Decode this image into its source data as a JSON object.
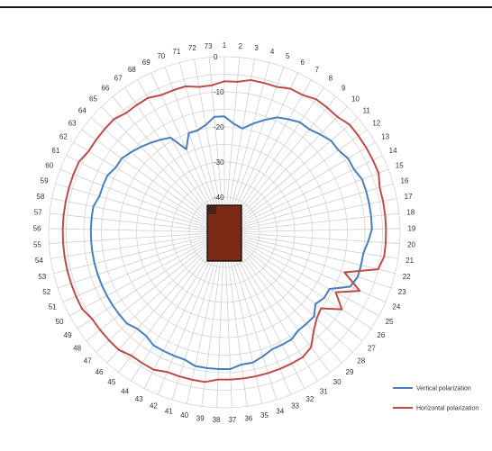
{
  "chart_data": {
    "type": "radar",
    "title": "",
    "angle_labels": [
      "1",
      "2",
      "3",
      "4",
      "5",
      "6",
      "7",
      "8",
      "9",
      "10",
      "11",
      "12",
      "13",
      "14",
      "15",
      "16",
      "17",
      "18",
      "19",
      "20",
      "21",
      "22",
      "23",
      "24",
      "25",
      "26",
      "27",
      "28",
      "29",
      "30",
      "31",
      "32",
      "33",
      "34",
      "35",
      "36",
      "37",
      "38",
      "39",
      "40",
      "41",
      "42",
      "43",
      "44",
      "45",
      "46",
      "47",
      "48",
      "49",
      "50",
      "51",
      "52",
      "53",
      "54",
      "55",
      "56",
      "57",
      "58",
      "59",
      "60",
      "61",
      "62",
      "63",
      "64",
      "65",
      "66",
      "67",
      "68",
      "69",
      "70",
      "71",
      "72",
      "73"
    ],
    "radial_axis": {
      "min": -50,
      "max": 0,
      "ticks": [
        0,
        -10,
        -20,
        -30,
        -40
      ],
      "unit": ""
    },
    "grid": true,
    "legend": "bottom-right",
    "center_icon": "device-under-test-box",
    "series": [
      {
        "name": "Vertical polarization",
        "color": "#4a7ebb",
        "values": [
          -17,
          -19,
          -20,
          -18,
          -16,
          -14,
          -13,
          -12,
          -12,
          -11,
          -10,
          -10,
          -9,
          -9,
          -8,
          -8,
          -8,
          -8,
          -8,
          -9,
          -10,
          -10,
          -10,
          -11,
          -16,
          -16,
          -17,
          -15,
          -15,
          -15,
          -14,
          -14,
          -14,
          -13,
          -12,
          -12,
          -11,
          -11,
          -11,
          -11,
          -12,
          -12,
          -12,
          -12,
          -13,
          -13,
          -12,
          -12,
          -12,
          -12,
          -12,
          -12,
          -12,
          -12,
          -12,
          -12,
          -12,
          -12,
          -13,
          -13,
          -13,
          -14,
          -14,
          -15,
          -16,
          -17,
          -18,
          -19,
          -24,
          -20,
          -20,
          -19,
          -17
        ]
      },
      {
        "name": "Horizontal polarization",
        "color": "#be4b48",
        "values": [
          -7,
          -7,
          -6,
          -6,
          -6,
          -5,
          -5,
          -4,
          -4,
          -4,
          -3,
          -3,
          -3,
          -3,
          -3,
          -4,
          -4,
          -4,
          -4,
          -4,
          -4,
          -5,
          -14,
          -8,
          -14,
          -10,
          -15,
          -14,
          -12,
          -9,
          -8,
          -8,
          -8,
          -8,
          -8,
          -8,
          -8,
          -8,
          -7,
          -7,
          -7,
          -7,
          -6,
          -6,
          -6,
          -5,
          -5,
          -5,
          -5,
          -4,
          -4,
          -4,
          -4,
          -4,
          -4,
          -4,
          -4,
          -4,
          -4,
          -4,
          -4,
          -5,
          -5,
          -5,
          -5,
          -6,
          -6,
          -6,
          -7,
          -7,
          -7,
          -8,
          -8
        ]
      }
    ]
  }
}
